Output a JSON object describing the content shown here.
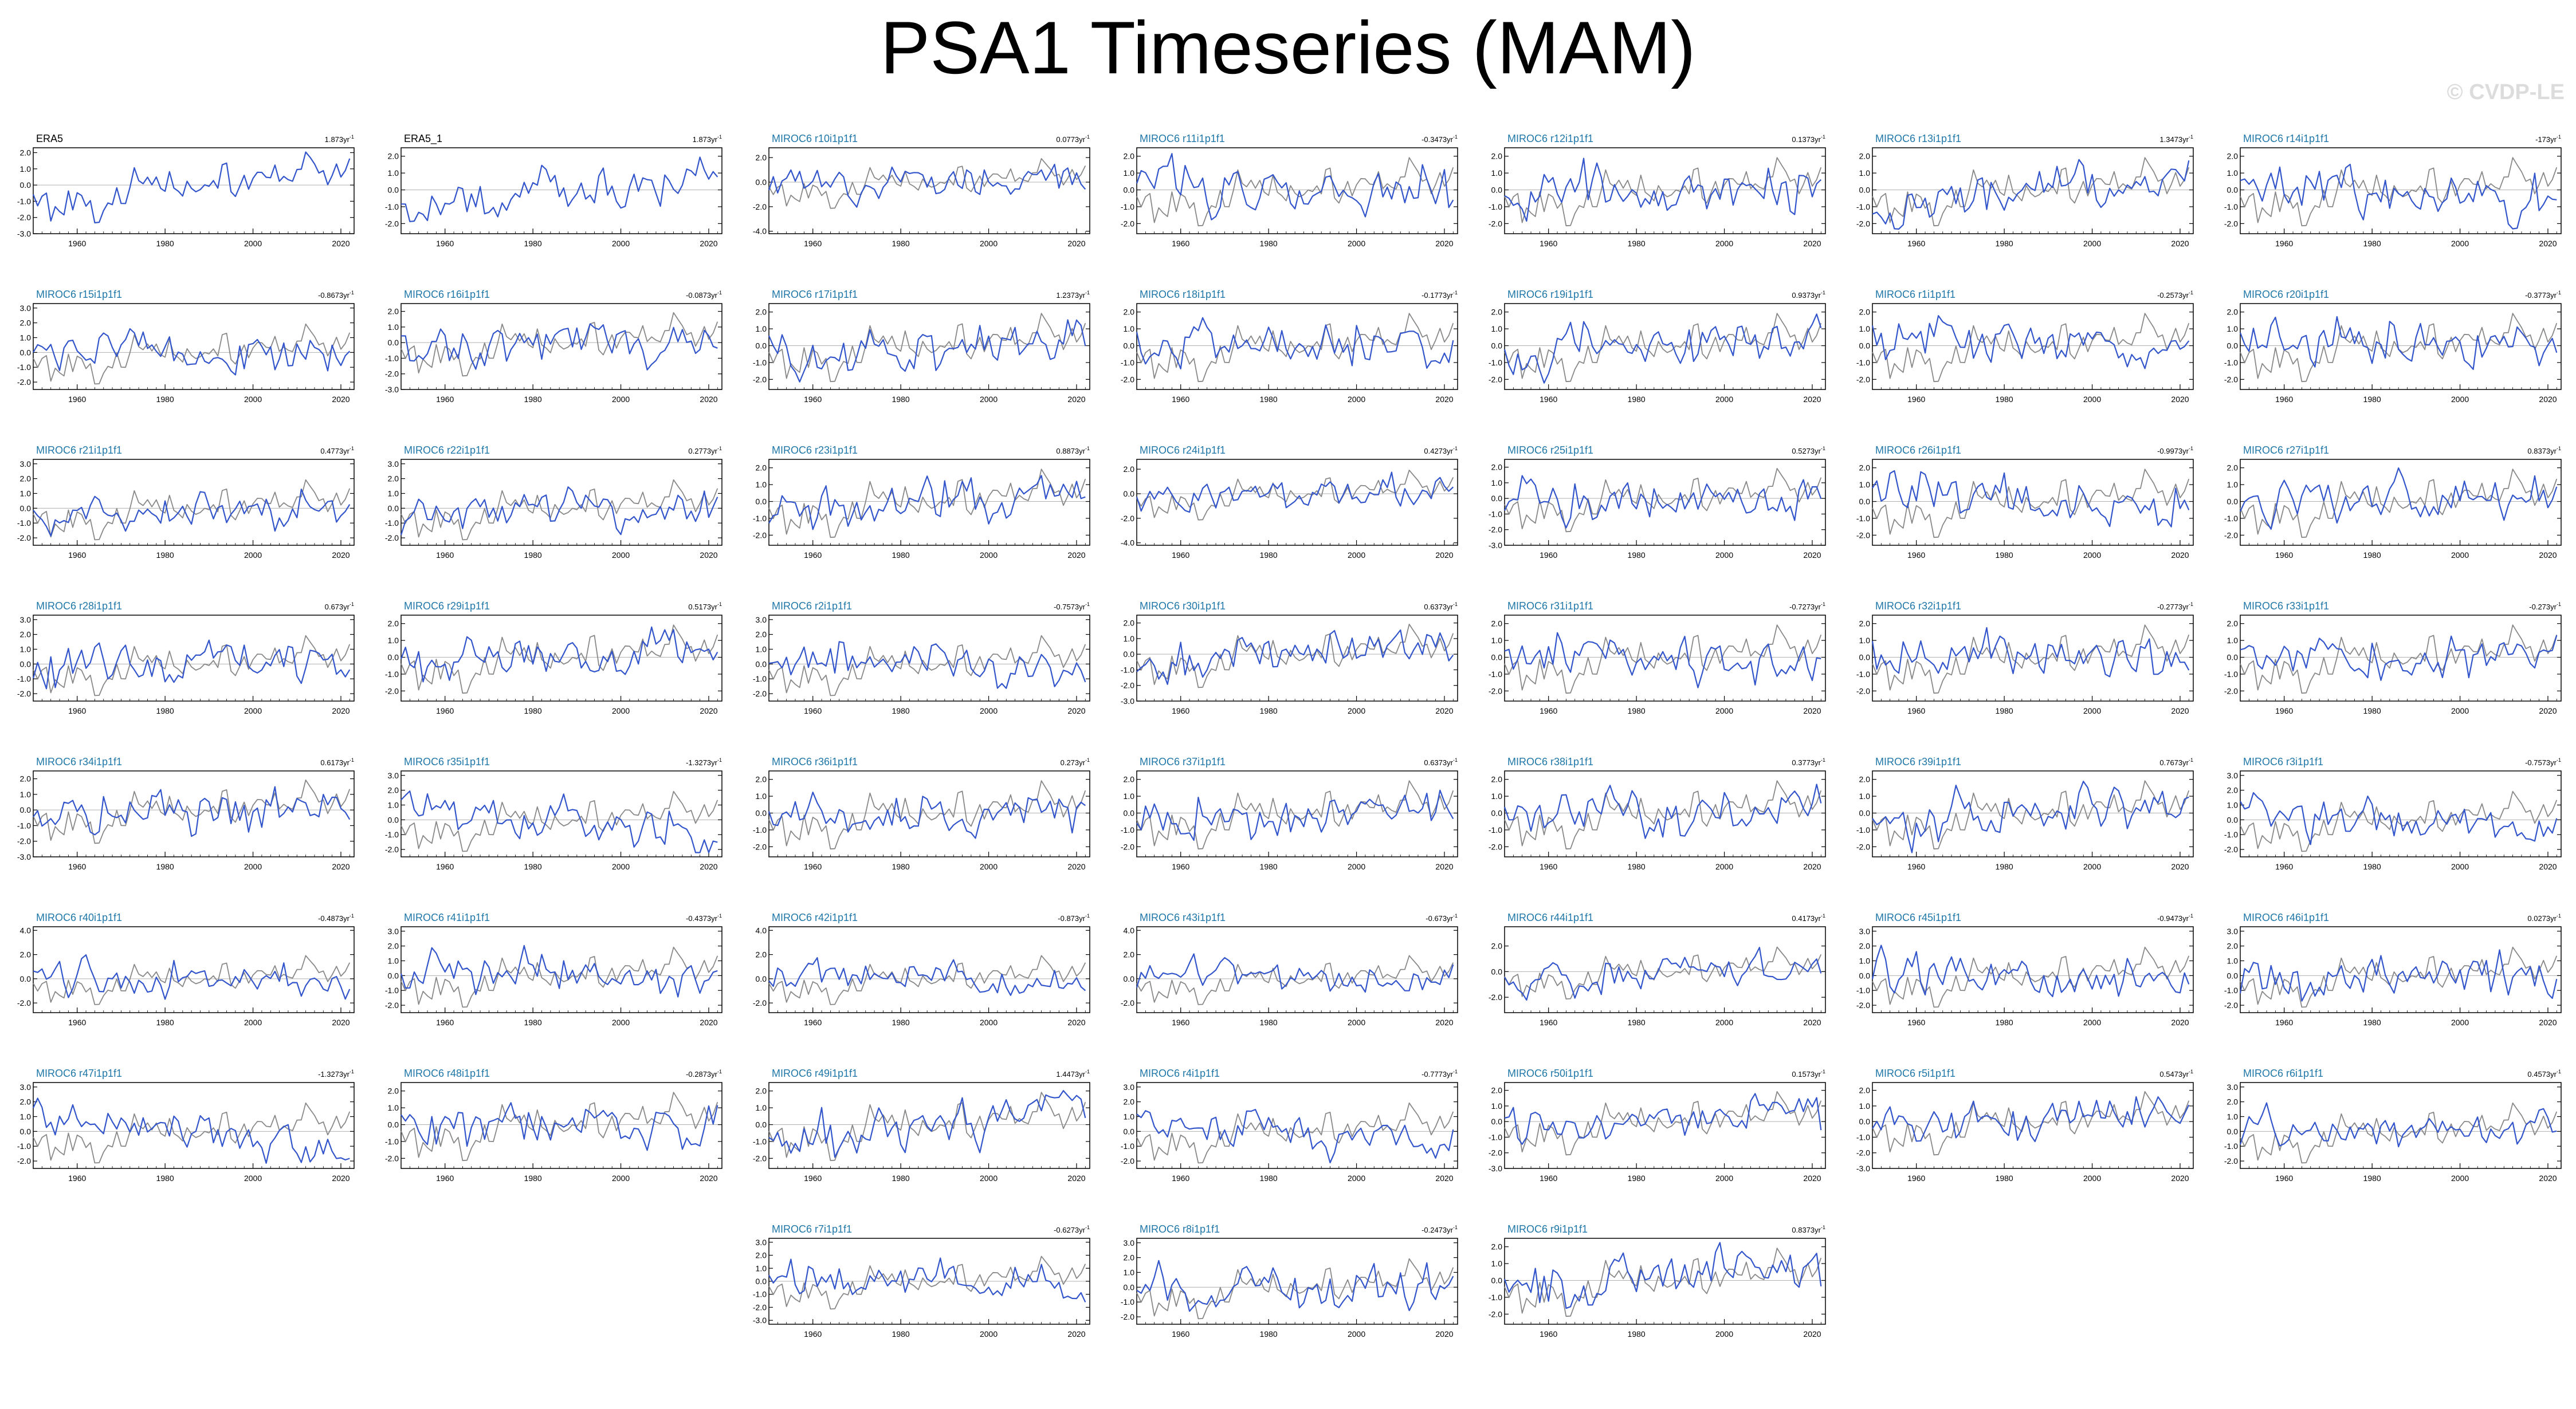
{
  "title": "PSA1 Timeseries (MAM)",
  "watermark": "© CVDP-LE",
  "colors": {
    "model": "#3355cc",
    "obs": "#888888",
    "model_label": "#1f77a8",
    "obs_label": "#000000",
    "zero": "#b0b0b0"
  },
  "x_ticks": [
    "1960",
    "1980",
    "2000",
    "2020"
  ],
  "chart_data": [
    {
      "type": "line",
      "title": "ERA5",
      "trend": "1.8",
      "trend_unit": "73yr",
      "obs": true,
      "y_ticks": [
        "2.0",
        "1.0",
        "0.0",
        "-1.0",
        "-2.0",
        "-3.0"
      ],
      "xlim": [
        1950,
        2023
      ],
      "ylim": [
        -3,
        2.3
      ]
    },
    {
      "type": "line",
      "title": "ERA5_1",
      "trend": "1.8",
      "trend_unit": "73yr",
      "obs": true,
      "y_ticks": [
        "2.0",
        "1.0",
        "0.0",
        "-1.0",
        "-2.0"
      ],
      "xlim": [
        1950,
        2023
      ],
      "ylim": [
        -2.6,
        2.5
      ]
    },
    {
      "type": "line",
      "title": "MIROC6 r10i1p1f1",
      "trend": "0.07",
      "trend_unit": "73yr",
      "obs": false,
      "y_ticks": [
        "2.0",
        "0.0",
        "-2.0",
        "-4.0"
      ],
      "xlim": [
        1950,
        2023
      ],
      "ylim": [
        -4.2,
        2.8
      ]
    },
    {
      "type": "line",
      "title": "MIROC6 r11i1p1f1",
      "trend": "-0.34",
      "trend_unit": "73yr",
      "obs": false,
      "y_ticks": [
        "2.0",
        "1.0",
        "0.0",
        "-1.0",
        "-2.0"
      ],
      "xlim": [
        1950,
        2023
      ],
      "ylim": [
        -2.6,
        2.5
      ]
    },
    {
      "type": "line",
      "title": "MIROC6 r12i1p1f1",
      "trend": "0.13",
      "trend_unit": "73yr",
      "obs": false,
      "y_ticks": [
        "2.0",
        "1.0",
        "0.0",
        "-1.0",
        "-2.0"
      ],
      "xlim": [
        1950,
        2023
      ],
      "ylim": [
        -2.6,
        2.5
      ]
    },
    {
      "type": "line",
      "title": "MIROC6 r13i1p1f1",
      "trend": "1.34",
      "trend_unit": "73yr",
      "obs": false,
      "y_ticks": [
        "2.0",
        "1.0",
        "0.0",
        "-1.0",
        "-2.0"
      ],
      "xlim": [
        1950,
        2023
      ],
      "ylim": [
        -2.6,
        2.5
      ]
    },
    {
      "type": "line",
      "title": "MIROC6 r14i1p1f1",
      "trend": "-1",
      "trend_unit": "73yr",
      "obs": false,
      "y_ticks": [
        "2.0",
        "1.0",
        "0.0",
        "-1.0",
        "-2.0"
      ],
      "xlim": [
        1950,
        2023
      ],
      "ylim": [
        -2.6,
        2.5
      ]
    },
    {
      "type": "line",
      "title": "MIROC6 r15i1p1f1",
      "trend": "-0.86",
      "trend_unit": "73yr",
      "obs": false,
      "y_ticks": [
        "3.0",
        "2.0",
        "1.0",
        "0.0",
        "-1.0",
        "-2.0"
      ],
      "xlim": [
        1950,
        2023
      ],
      "ylim": [
        -2.5,
        3.3
      ]
    },
    {
      "type": "line",
      "title": "MIROC6 r16i1p1f1",
      "trend": "-0.08",
      "trend_unit": "73yr",
      "obs": false,
      "y_ticks": [
        "2.0",
        "1.0",
        "0.0",
        "-1.0",
        "-2.0",
        "-3.0"
      ],
      "xlim": [
        1950,
        2023
      ],
      "ylim": [
        -3,
        2.5
      ]
    },
    {
      "type": "line",
      "title": "MIROC6 r17i1p1f1",
      "trend": "1.23",
      "trend_unit": "73yr",
      "obs": false,
      "y_ticks": [
        "2.0",
        "1.0",
        "0.0",
        "-1.0",
        "-2.0"
      ],
      "xlim": [
        1950,
        2023
      ],
      "ylim": [
        -2.6,
        2.5
      ]
    },
    {
      "type": "line",
      "title": "MIROC6 r18i1p1f1",
      "trend": "-0.17",
      "trend_unit": "73yr",
      "obs": false,
      "y_ticks": [
        "2.0",
        "1.0",
        "0.0",
        "-1.0",
        "-2.0"
      ],
      "xlim": [
        1950,
        2023
      ],
      "ylim": [
        -2.6,
        2.5
      ]
    },
    {
      "type": "line",
      "title": "MIROC6 r19i1p1f1",
      "trend": "0.93",
      "trend_unit": "73yr",
      "obs": false,
      "y_ticks": [
        "2.0",
        "1.0",
        "0.0",
        "-1.0",
        "-2.0"
      ],
      "xlim": [
        1950,
        2023
      ],
      "ylim": [
        -2.6,
        2.5
      ]
    },
    {
      "type": "line",
      "title": "MIROC6 r1i1p1f1",
      "trend": "-0.25",
      "trend_unit": "73yr",
      "obs": false,
      "y_ticks": [
        "2.0",
        "1.0",
        "0.0",
        "-1.0",
        "-2.0"
      ],
      "xlim": [
        1950,
        2023
      ],
      "ylim": [
        -2.6,
        2.5
      ]
    },
    {
      "type": "line",
      "title": "MIROC6 r20i1p1f1",
      "trend": "-0.37",
      "trend_unit": "73yr",
      "obs": false,
      "y_ticks": [
        "2.0",
        "1.0",
        "0.0",
        "-1.0",
        "-2.0"
      ],
      "xlim": [
        1950,
        2023
      ],
      "ylim": [
        -2.6,
        2.5
      ]
    },
    {
      "type": "line",
      "title": "MIROC6 r21i1p1f1",
      "trend": "0.47",
      "trend_unit": "73yr",
      "obs": false,
      "y_ticks": [
        "3.0",
        "2.0",
        "1.0",
        "0.0",
        "-1.0",
        "-2.0"
      ],
      "xlim": [
        1950,
        2023
      ],
      "ylim": [
        -2.5,
        3.3
      ]
    },
    {
      "type": "line",
      "title": "MIROC6 r22i1p1f1",
      "trend": "0.27",
      "trend_unit": "73yr",
      "obs": false,
      "y_ticks": [
        "3.0",
        "2.0",
        "1.0",
        "0.0",
        "-1.0",
        "-2.0"
      ],
      "xlim": [
        1950,
        2023
      ],
      "ylim": [
        -2.5,
        3.3
      ]
    },
    {
      "type": "line",
      "title": "MIROC6 r23i1p1f1",
      "trend": "0.88",
      "trend_unit": "73yr",
      "obs": false,
      "y_ticks": [
        "2.0",
        "1.0",
        "0.0",
        "-1.0",
        "-2.0"
      ],
      "xlim": [
        1950,
        2023
      ],
      "ylim": [
        -2.6,
        2.5
      ]
    },
    {
      "type": "line",
      "title": "MIROC6 r24i1p1f1",
      "trend": "0.42",
      "trend_unit": "73yr",
      "obs": false,
      "y_ticks": [
        "2.0",
        "0.0",
        "-2.0",
        "-4.0"
      ],
      "xlim": [
        1950,
        2023
      ],
      "ylim": [
        -4.2,
        2.8
      ]
    },
    {
      "type": "line",
      "title": "MIROC6 r25i1p1f1",
      "trend": "0.52",
      "trend_unit": "73yr",
      "obs": false,
      "y_ticks": [
        "2.0",
        "1.0",
        "0.0",
        "-1.0",
        "-2.0",
        "-3.0"
      ],
      "xlim": [
        1950,
        2023
      ],
      "ylim": [
        -3,
        2.5
      ]
    },
    {
      "type": "line",
      "title": "MIROC6 r26i1p1f1",
      "trend": "-0.99",
      "trend_unit": "73yr",
      "obs": false,
      "y_ticks": [
        "2.0",
        "1.0",
        "0.0",
        "-1.0",
        "-2.0"
      ],
      "xlim": [
        1950,
        2023
      ],
      "ylim": [
        -2.6,
        2.5
      ]
    },
    {
      "type": "line",
      "title": "MIROC6 r27i1p1f1",
      "trend": "0.83",
      "trend_unit": "73yr",
      "obs": false,
      "y_ticks": [
        "2.0",
        "1.0",
        "0.0",
        "-1.0",
        "-2.0"
      ],
      "xlim": [
        1950,
        2023
      ],
      "ylim": [
        -2.6,
        2.5
      ]
    },
    {
      "type": "line",
      "title": "MIROC6 r28i1p1f1",
      "trend": "0.6",
      "trend_unit": "73yr",
      "obs": false,
      "y_ticks": [
        "3.0",
        "2.0",
        "1.0",
        "0.0",
        "-1.0",
        "-2.0"
      ],
      "xlim": [
        1950,
        2023
      ],
      "ylim": [
        -2.5,
        3.3
      ]
    },
    {
      "type": "line",
      "title": "MIROC6 r29i1p1f1",
      "trend": "0.51",
      "trend_unit": "73yr",
      "obs": false,
      "y_ticks": [
        "2.0",
        "1.0",
        "0.0",
        "-1.0",
        "-2.0"
      ],
      "xlim": [
        1950,
        2023
      ],
      "ylim": [
        -2.6,
        2.5
      ]
    },
    {
      "type": "line",
      "title": "MIROC6 r2i1p1f1",
      "trend": "-0.75",
      "trend_unit": "73yr",
      "obs": false,
      "y_ticks": [
        "3.0",
        "2.0",
        "1.0",
        "0.0",
        "-1.0",
        "-2.0"
      ],
      "xlim": [
        1950,
        2023
      ],
      "ylim": [
        -2.5,
        3.3
      ]
    },
    {
      "type": "line",
      "title": "MIROC6 r30i1p1f1",
      "trend": "0.63",
      "trend_unit": "73yr",
      "obs": false,
      "y_ticks": [
        "2.0",
        "1.0",
        "0.0",
        "-1.0",
        "-2.0",
        "-3.0"
      ],
      "xlim": [
        1950,
        2023
      ],
      "ylim": [
        -3,
        2.5
      ]
    },
    {
      "type": "line",
      "title": "MIROC6 r31i1p1f1",
      "trend": "-0.72",
      "trend_unit": "73yr",
      "obs": false,
      "y_ticks": [
        "2.0",
        "1.0",
        "0.0",
        "-1.0",
        "-2.0"
      ],
      "xlim": [
        1950,
        2023
      ],
      "ylim": [
        -2.6,
        2.5
      ]
    },
    {
      "type": "line",
      "title": "MIROC6 r32i1p1f1",
      "trend": "-0.27",
      "trend_unit": "73yr",
      "obs": false,
      "y_ticks": [
        "2.0",
        "1.0",
        "0.0",
        "-1.0",
        "-2.0"
      ],
      "xlim": [
        1950,
        2023
      ],
      "ylim": [
        -2.6,
        2.5
      ]
    },
    {
      "type": "line",
      "title": "MIROC6 r33i1p1f1",
      "trend": "-0.2",
      "trend_unit": "73yr",
      "obs": false,
      "y_ticks": [
        "2.0",
        "1.0",
        "0.0",
        "-1.0",
        "-2.0"
      ],
      "xlim": [
        1950,
        2023
      ],
      "ylim": [
        -2.6,
        2.5
      ]
    },
    {
      "type": "line",
      "title": "MIROC6 r34i1p1f1",
      "trend": "0.61",
      "trend_unit": "73yr",
      "obs": false,
      "y_ticks": [
        "2.0",
        "1.0",
        "0.0",
        "-1.0",
        "-2.0",
        "-3.0"
      ],
      "xlim": [
        1950,
        2023
      ],
      "ylim": [
        -3,
        2.5
      ]
    },
    {
      "type": "line",
      "title": "MIROC6 r35i1p1f1",
      "trend": "-1.32",
      "trend_unit": "73yr",
      "obs": false,
      "y_ticks": [
        "3.0",
        "2.0",
        "1.0",
        "0.0",
        "-1.0",
        "-2.0"
      ],
      "xlim": [
        1950,
        2023
      ],
      "ylim": [
        -2.5,
        3.3
      ]
    },
    {
      "type": "line",
      "title": "MIROC6 r36i1p1f1",
      "trend": "0.2",
      "trend_unit": "73yr",
      "obs": false,
      "y_ticks": [
        "2.0",
        "1.0",
        "0.0",
        "-1.0",
        "-2.0"
      ],
      "xlim": [
        1950,
        2023
      ],
      "ylim": [
        -2.6,
        2.5
      ]
    },
    {
      "type": "line",
      "title": "MIROC6 r37i1p1f1",
      "trend": "0.63",
      "trend_unit": "73yr",
      "obs": false,
      "y_ticks": [
        "2.0",
        "1.0",
        "0.0",
        "-1.0",
        "-2.0"
      ],
      "xlim": [
        1950,
        2023
      ],
      "ylim": [
        -2.6,
        2.5
      ]
    },
    {
      "type": "line",
      "title": "MIROC6 r38i1p1f1",
      "trend": "0.37",
      "trend_unit": "73yr",
      "obs": false,
      "y_ticks": [
        "2.0",
        "1.0",
        "0.0",
        "-1.0",
        "-2.0"
      ],
      "xlim": [
        1950,
        2023
      ],
      "ylim": [
        -2.6,
        2.5
      ]
    },
    {
      "type": "line",
      "title": "MIROC6 r39i1p1f1",
      "trend": "0.76",
      "trend_unit": "73yr",
      "obs": false,
      "y_ticks": [
        "2.0",
        "1.0",
        "0.0",
        "-1.0",
        "-2.0"
      ],
      "xlim": [
        1950,
        2023
      ],
      "ylim": [
        -2.6,
        2.5
      ]
    },
    {
      "type": "line",
      "title": "MIROC6 r3i1p1f1",
      "trend": "-0.75",
      "trend_unit": "73yr",
      "obs": false,
      "y_ticks": [
        "3.0",
        "2.0",
        "1.0",
        "0.0",
        "-1.0",
        "-2.0"
      ],
      "xlim": [
        1950,
        2023
      ],
      "ylim": [
        -2.5,
        3.3
      ]
    },
    {
      "type": "line",
      "title": "MIROC6 r40i1p1f1",
      "trend": "-0.48",
      "trend_unit": "73yr",
      "obs": false,
      "y_ticks": [
        "4.0",
        "2.0",
        "0.0",
        "-2.0"
      ],
      "xlim": [
        1950,
        2023
      ],
      "ylim": [
        -2.8,
        4.3
      ]
    },
    {
      "type": "line",
      "title": "MIROC6 r41i1p1f1",
      "trend": "-0.43",
      "trend_unit": "73yr",
      "obs": false,
      "y_ticks": [
        "3.0",
        "2.0",
        "1.0",
        "0.0",
        "-1.0",
        "-2.0"
      ],
      "xlim": [
        1950,
        2023
      ],
      "ylim": [
        -2.5,
        3.3
      ]
    },
    {
      "type": "line",
      "title": "MIROC6 r42i1p1f1",
      "trend": "-0.8",
      "trend_unit": "73yr",
      "obs": false,
      "y_ticks": [
        "4.0",
        "2.0",
        "0.0",
        "-2.0"
      ],
      "xlim": [
        1950,
        2023
      ],
      "ylim": [
        -2.8,
        4.3
      ]
    },
    {
      "type": "line",
      "title": "MIROC6 r43i1p1f1",
      "trend": "-0.6",
      "trend_unit": "73yr",
      "obs": false,
      "y_ticks": [
        "4.0",
        "2.0",
        "0.0",
        "-2.0"
      ],
      "xlim": [
        1950,
        2023
      ],
      "ylim": [
        -2.8,
        4.3
      ]
    },
    {
      "type": "line",
      "title": "MIROC6 r44i1p1f1",
      "trend": "0.41",
      "trend_unit": "73yr",
      "obs": false,
      "y_ticks": [
        "2.0",
        "0.0",
        "-2.0"
      ],
      "xlim": [
        1950,
        2023
      ],
      "ylim": [
        -3.2,
        3.5
      ]
    },
    {
      "type": "line",
      "title": "MIROC6 r45i1p1f1",
      "trend": "-0.94",
      "trend_unit": "73yr",
      "obs": false,
      "y_ticks": [
        "3.0",
        "2.0",
        "1.0",
        "0.0",
        "-1.0",
        "-2.0"
      ],
      "xlim": [
        1950,
        2023
      ],
      "ylim": [
        -2.5,
        3.3
      ]
    },
    {
      "type": "line",
      "title": "MIROC6 r46i1p1f1",
      "trend": "0.02",
      "trend_unit": "73yr",
      "obs": false,
      "y_ticks": [
        "3.0",
        "2.0",
        "1.0",
        "0.0",
        "-1.0",
        "-2.0"
      ],
      "xlim": [
        1950,
        2023
      ],
      "ylim": [
        -2.5,
        3.3
      ]
    },
    {
      "type": "line",
      "title": "MIROC6 r47i1p1f1",
      "trend": "-1.32",
      "trend_unit": "73yr",
      "obs": false,
      "y_ticks": [
        "3.0",
        "2.0",
        "1.0",
        "0.0",
        "-1.0",
        "-2.0"
      ],
      "xlim": [
        1950,
        2023
      ],
      "ylim": [
        -2.5,
        3.3
      ]
    },
    {
      "type": "line",
      "title": "MIROC6 r48i1p1f1",
      "trend": "-0.28",
      "trend_unit": "73yr",
      "obs": false,
      "y_ticks": [
        "2.0",
        "1.0",
        "0.0",
        "-1.0",
        "-2.0"
      ],
      "xlim": [
        1950,
        2023
      ],
      "ylim": [
        -2.6,
        2.5
      ]
    },
    {
      "type": "line",
      "title": "MIROC6 r49i1p1f1",
      "trend": "1.44",
      "trend_unit": "73yr",
      "obs": false,
      "y_ticks": [
        "2.0",
        "1.0",
        "0.0",
        "-1.0",
        "-2.0"
      ],
      "xlim": [
        1950,
        2023
      ],
      "ylim": [
        -2.6,
        2.5
      ]
    },
    {
      "type": "line",
      "title": "MIROC6 r4i1p1f1",
      "trend": "-0.77",
      "trend_unit": "73yr",
      "obs": false,
      "y_ticks": [
        "3.0",
        "2.0",
        "1.0",
        "0.0",
        "-1.0",
        "-2.0"
      ],
      "xlim": [
        1950,
        2023
      ],
      "ylim": [
        -2.5,
        3.3
      ]
    },
    {
      "type": "line",
      "title": "MIROC6 r50i1p1f1",
      "trend": "0.15",
      "trend_unit": "73yr",
      "obs": false,
      "y_ticks": [
        "2.0",
        "1.0",
        "0.0",
        "-1.0",
        "-2.0",
        "-3.0"
      ],
      "xlim": [
        1950,
        2023
      ],
      "ylim": [
        -3,
        2.5
      ]
    },
    {
      "type": "line",
      "title": "MIROC6 r5i1p1f1",
      "trend": "0.54",
      "trend_unit": "73yr",
      "obs": false,
      "y_ticks": [
        "2.0",
        "1.0",
        "0.0",
        "-1.0",
        "-2.0",
        "-3.0"
      ],
      "xlim": [
        1950,
        2023
      ],
      "ylim": [
        -3,
        2.5
      ]
    },
    {
      "type": "line",
      "title": "MIROC6 r6i1p1f1",
      "trend": "0.45",
      "trend_unit": "73yr",
      "obs": false,
      "y_ticks": [
        "3.0",
        "2.0",
        "1.0",
        "0.0",
        "-1.0",
        "-2.0"
      ],
      "xlim": [
        1950,
        2023
      ],
      "ylim": [
        -2.5,
        3.3
      ]
    },
    {
      "type": "line",
      "title": "MIROC6 r7i1p1f1",
      "trend": "-0.62",
      "trend_unit": "73yr",
      "obs": false,
      "y_ticks": [
        "3.0",
        "2.0",
        "1.0",
        "0.0",
        "-1.0",
        "-2.0",
        "-3.0"
      ],
      "xlim": [
        1950,
        2023
      ],
      "ylim": [
        -3.3,
        3.3
      ]
    },
    {
      "type": "line",
      "title": "MIROC6 r8i1p1f1",
      "trend": "-0.24",
      "trend_unit": "73yr",
      "obs": false,
      "y_ticks": [
        "3.0",
        "2.0",
        "1.0",
        "0.0",
        "-1.0",
        "-2.0"
      ],
      "xlim": [
        1950,
        2023
      ],
      "ylim": [
        -2.5,
        3.3
      ]
    },
    {
      "type": "line",
      "title": "MIROC6 r9i1p1f1",
      "trend": "0.83",
      "trend_unit": "73yr",
      "obs": false,
      "y_ticks": [
        "2.0",
        "1.0",
        "0.0",
        "-1.0",
        "-2.0"
      ],
      "xlim": [
        1950,
        2023
      ],
      "ylim": [
        -2.6,
        2.5
      ]
    }
  ]
}
